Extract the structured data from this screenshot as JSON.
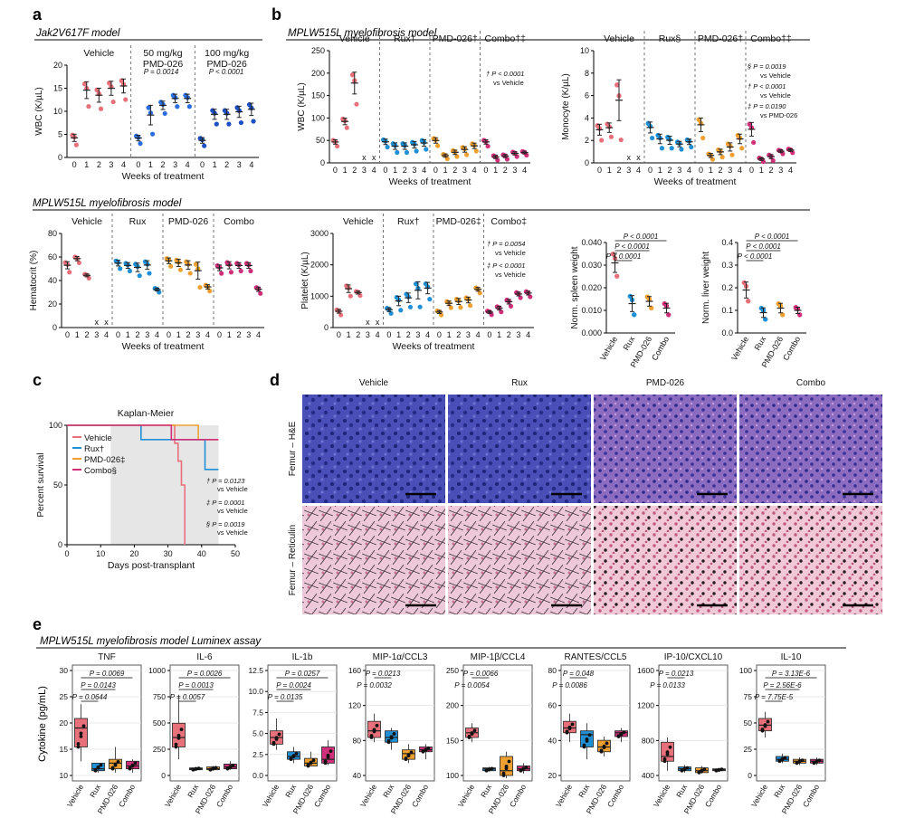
{
  "colors": {
    "vehicle": "#e8707a",
    "rux": "#1f8fd6",
    "pmd": "#f0a030",
    "combo": "#d0307a",
    "darkblue": "#1c4fc4",
    "medblue": "#2a6ee0"
  },
  "panel_a": {
    "label": "a",
    "model": "Jak2V617F model",
    "groups": [
      "Vehicle",
      "50 mg/kg\nPMD-026",
      "100 mg/kg\nPMD-026"
    ],
    "pvalues": [
      "P = 0.0014",
      "P < 0.0001"
    ],
    "ylabel": "WBC (K/µL)",
    "xlabel": "Weeks of treatment",
    "yticks": [
      "0",
      "5",
      "10",
      "15",
      "20"
    ]
  },
  "panel_b": {
    "label": "b",
    "model": "MPLW515L myelofibrosis model",
    "wbc_groups": [
      "Vehicle",
      "Rux†",
      "PMD-026†",
      "Combo†‡"
    ],
    "wbc_note": [
      "† P < 0.0001",
      "vs Vehicle"
    ],
    "wbc_ylabel": "WBC (K/µL)",
    "wbc_yticks": [
      "0",
      "50",
      "100",
      "150",
      "200",
      "250"
    ],
    "mono_groups": [
      "Vehicle",
      "Rux§",
      "PMD-026†",
      "Combo†‡"
    ],
    "mono_notes": [
      "§ P = 0.0019",
      "vs Vehicle",
      "† P < 0.0001",
      "vs Vehicle",
      "‡ P = 0.0190",
      "vs PMD-026"
    ],
    "mono_ylabel": "Monocyte (K/µL)",
    "mono_yticks": [
      "0",
      "2",
      "4",
      "6",
      "8",
      "10"
    ],
    "xlabel": "Weeks of treatment"
  },
  "panel_row2": {
    "model": "MPLW515L myelofibrosis model",
    "hct_groups": [
      "Vehicle",
      "Rux",
      "PMD-026",
      "Combo"
    ],
    "hct_ylabel": "Hematocrit (%)",
    "hct_yticks": [
      "0",
      "20",
      "40",
      "60",
      "80"
    ],
    "plt_groups": [
      "Vehicle",
      "Rux†",
      "PMD-026‡",
      "Combo‡"
    ],
    "plt_notes": [
      "† P = 0.0054",
      "vs Vehicle",
      "‡ P < 0.0001",
      "vs Vehicle"
    ],
    "plt_ylabel": "Platelet (K/µL)",
    "plt_yticks": [
      "0",
      "1000",
      "2000",
      "3000"
    ],
    "xlabel": "Weeks of treatment",
    "spleen_ylabel": "Norm. spleen weight",
    "spleen_yticks": [
      "0.000",
      "0.010",
      "0.020",
      "0.030",
      "0.040"
    ],
    "liver_ylabel": "Norm. liver weight",
    "liver_yticks": [
      "0.0",
      "0.1",
      "0.2",
      "0.3",
      "0.4"
    ],
    "organ_pvalues": [
      "P < 0.0001",
      "P < 0.0001",
      "P < 0.0001"
    ],
    "categories": [
      "Vehicle",
      "Rux",
      "PMD-026",
      "Combo"
    ]
  },
  "panel_c": {
    "label": "c",
    "title": "Kaplan-Meier",
    "legend": [
      "Vehicle",
      "Rux†",
      "PMD-026‡",
      "Combo§"
    ],
    "ylabel": "Percent survival",
    "xlabel": "Days post-transplant",
    "yticks": [
      "0",
      "50",
      "100"
    ],
    "xticks": [
      "0",
      "10",
      "20",
      "30",
      "40",
      "50"
    ],
    "notes": [
      "† P = 0.0123",
      "vs Vehicle",
      "‡ P = 0.0001",
      "vs Vehicle",
      "§ P = 0.0019",
      "vs Vehicle"
    ]
  },
  "panel_d": {
    "label": "d",
    "columns": [
      "Vehicle",
      "Rux",
      "PMD-026",
      "Combo"
    ],
    "rows": [
      "Femur – H&E",
      "Femur – Reticulin"
    ]
  },
  "panel_e": {
    "label": "e",
    "model": "MPLW515L myelofibrosis model Luminex assay",
    "ylabel": "Cytokine (pg/mL)",
    "categories": [
      "Vehicle",
      "Rux",
      "PMD-026",
      "Combo"
    ],
    "plots": [
      {
        "title": "TNF",
        "yticks": [
          "10",
          "15",
          "20",
          "25",
          "30"
        ],
        "p": [
          "P = 0.0069",
          "P = 0.0143",
          "P = 0.0644"
        ]
      },
      {
        "title": "IL-6",
        "yticks": [
          "0",
          "250",
          "500",
          "750",
          "1000"
        ],
        "p": [
          "P = 0.0026",
          "P = 0.0013",
          "P = 0.0057"
        ]
      },
      {
        "title": "IL-1b",
        "yticks": [
          "0.0",
          "2.5",
          "5.0",
          "7.5",
          "10.0",
          "12.5"
        ],
        "p": [
          "P = 0.0257",
          "P = 0.0024",
          "P = 0.0135"
        ]
      },
      {
        "title": "MIP-1α/CCL3",
        "yticks": [
          "40",
          "80",
          "120",
          "160"
        ],
        "p": [
          "P = 0.0213",
          "P = 0.0032"
        ]
      },
      {
        "title": "MIP-1β/CCL4",
        "yticks": [
          "100",
          "150",
          "200",
          "250"
        ],
        "p": [
          "P = 0.0066",
          "P = 0.0054"
        ]
      },
      {
        "title": "RANTES/CCL5",
        "yticks": [
          "20",
          "40",
          "60",
          "80"
        ],
        "p": [
          "P = 0.048",
          "P = 0.0086"
        ]
      },
      {
        "title": "IP-10/CXCL10",
        "yticks": [
          "400",
          "800",
          "1200",
          "1600"
        ],
        "p": [
          "P = 0.0213",
          "P = 0.0133"
        ]
      },
      {
        "title": "IL-10",
        "yticks": [
          "0",
          "25",
          "50",
          "75",
          "100"
        ],
        "p": [
          "P = 3.13E-6",
          "P = 2.56E-6",
          "P = 7.75E-5"
        ]
      }
    ]
  }
}
